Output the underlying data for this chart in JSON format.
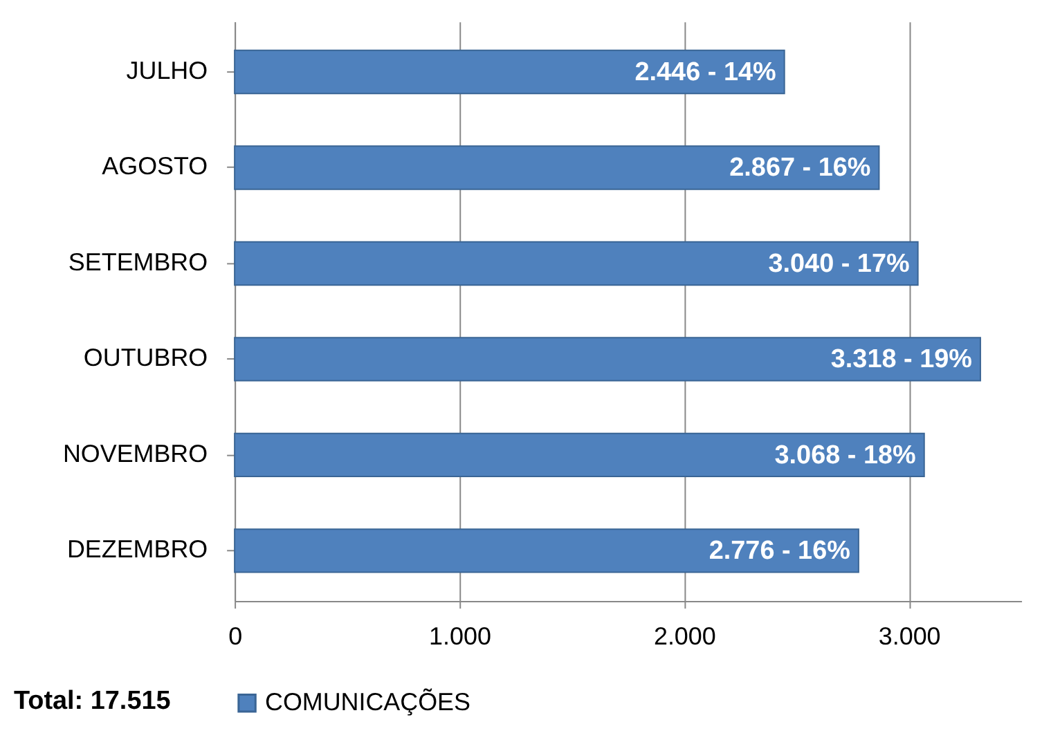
{
  "chart_data": {
    "type": "bar",
    "orientation": "horizontal",
    "categories": [
      "JULHO",
      "AGOSTO",
      "SETEMBRO",
      "OUTUBRO",
      "NOVEMBRO",
      "DEZEMBRO"
    ],
    "series": [
      {
        "name": "COMUNICAÇÕES",
        "color": "#4f81bd",
        "values": [
          2446,
          2867,
          3040,
          3318,
          3068,
          2776
        ],
        "value_labels": [
          "2.446 - 14%",
          "2.867 - 16%",
          "3.040 - 17%",
          "3.318 - 19%",
          "3.068 - 18%",
          "2.776 - 16%"
        ]
      }
    ],
    "xlim": [
      0,
      3500
    ],
    "xticks": [
      0,
      {
        "value": 1000,
        "label": "1.000"
      },
      {
        "value": 2000,
        "label": "2.000"
      },
      {
        "value": 3000,
        "label": "3.000"
      }
    ],
    "grid": "x",
    "legend": "bottom",
    "annotations": [
      "Total: 17.515"
    ]
  }
}
